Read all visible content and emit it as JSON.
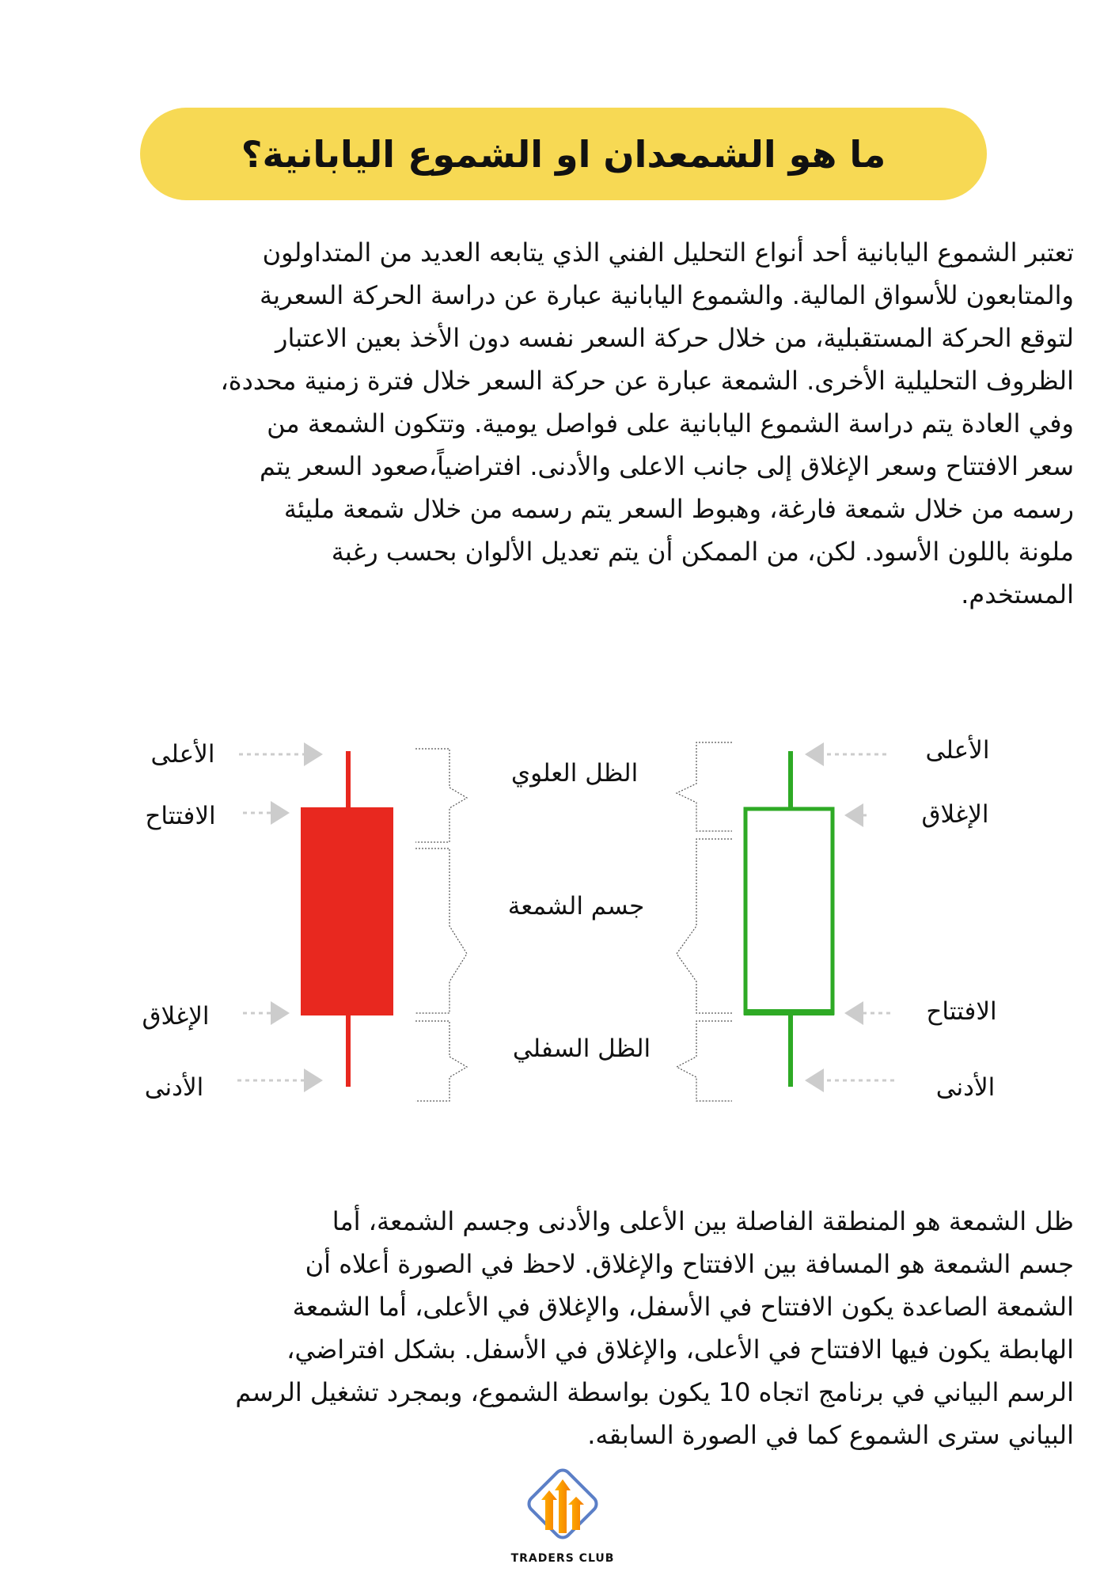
{
  "title": "ما هو الشمعدان او الشموع اليابانية؟",
  "intro_lines": [
    "تعتبر الشموع اليابانية أحد أنواع التحليل الفني الذي يتابعه العديد من المتداولون",
    "والمتابعون للأسواق المالية. والشموع اليابانية عبارة عن دراسة الحركة السعرية",
    "لتوقع الحركة المستقبلية، من خلال حركة السعر نفسه دون الأخذ بعين الاعتبار",
    "الظروف التحليلية الأخرى. الشمعة عبارة عن حركة السعر خلال فترة زمنية محددة،",
    "وفي العادة يتم دراسة الشموع اليابانية على فواصل يومية. وتتكون الشمعة من",
    "سعر الافتتاح وسعر الإغلاق إلى جانب الاعلى والأدنى. افتراضياً،صعود السعر يتم",
    "رسمه من خلال شمعة فارغة، وهبوط السعر يتم رسمه من خلال شمعة مليئة",
    "ملونة باللون الأسود. لكن، من الممكن أن يتم تعديل الألوان بحسب رغبة",
    "المستخدم."
  ],
  "diagram": {
    "bearish": {
      "color": "#e8281f",
      "high": "الأعلى",
      "open": "الافتتاح",
      "close": "الإغلاق",
      "low": "الأدنى"
    },
    "bullish": {
      "color": "#2eaa25",
      "high": "الأعلى",
      "close": "الإغلاق",
      "open": "الافتتاح",
      "low": "الأدنى"
    },
    "upper_shadow": "الظل العلوي",
    "body": "جسم الشمعة",
    "lower_shadow": "الظل السفلي"
  },
  "body_lines": [
    "ظل الشمعة هو المنطقة الفاصلة بين الأعلى والأدنى وجسم الشمعة، أما",
    "جسم الشمعة هو المسافة بين الافتتاح والإغلاق. لاحظ في الصورة أعلاه أن",
    "الشمعة الصاعدة يكون الافتتاح في الأسفل، والإغلاق في الأعلى، أما الشمعة",
    "الهابطة يكون فيها الافتتاح في الأعلى، والإغلاق في الأسفل. بشكل افتراضي،",
    "الرسم البياني في برنامج اتجاه 10 يكون بواسطة الشموع، وبمجرد تشغيل الرسم",
    "البياني سترى الشموع كما في الصورة السابقه."
  ],
  "logo": {
    "text": "TRADERS CLUB"
  },
  "colors": {
    "title_bg": "#f7d954"
  }
}
